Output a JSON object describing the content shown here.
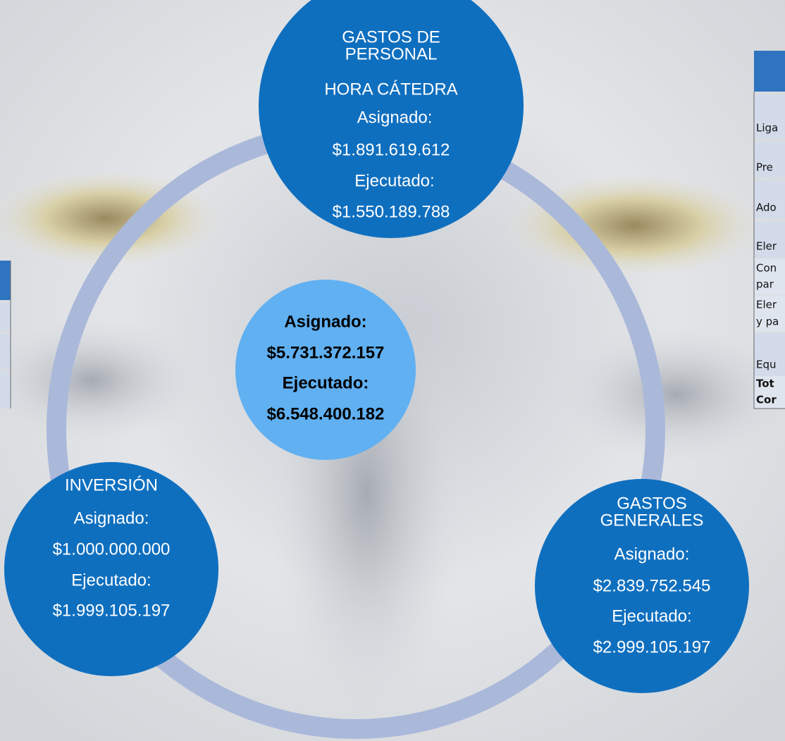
{
  "diagram": {
    "nodes": [
      {
        "lines": [
          "GASTOS DE",
          "PERSONAL",
          "HORA CÁTEDRA",
          "Asignado:",
          "$1.891.619.612",
          "Ejecutado:",
          "$1.550.189.788"
        ]
      },
      {
        "lines": [
          "Asignado:",
          "$5.731.372.157",
          "Ejecutado:",
          "$6.548.400.182"
        ]
      },
      {
        "lines": [
          "INVERSIÓN",
          "Asignado:",
          "$1.000.000.000",
          "Ejecutado:",
          "$1.999.105.197"
        ]
      },
      {
        "lines": [
          "GASTOS",
          "GENERALES",
          "Asignado:",
          "$2.839.752.545",
          "Ejecutado:",
          "$2.999.105.197"
        ]
      }
    ]
  },
  "right_table": {
    "rows": [
      [
        "Liga"
      ],
      [
        "Pre"
      ],
      [
        "Ado"
      ],
      [
        "Eler"
      ],
      [
        "Con",
        "par"
      ],
      [
        "Eler",
        "y pa"
      ],
      [
        "Equ"
      ],
      [
        "Tot",
        "Cor"
      ]
    ]
  }
}
